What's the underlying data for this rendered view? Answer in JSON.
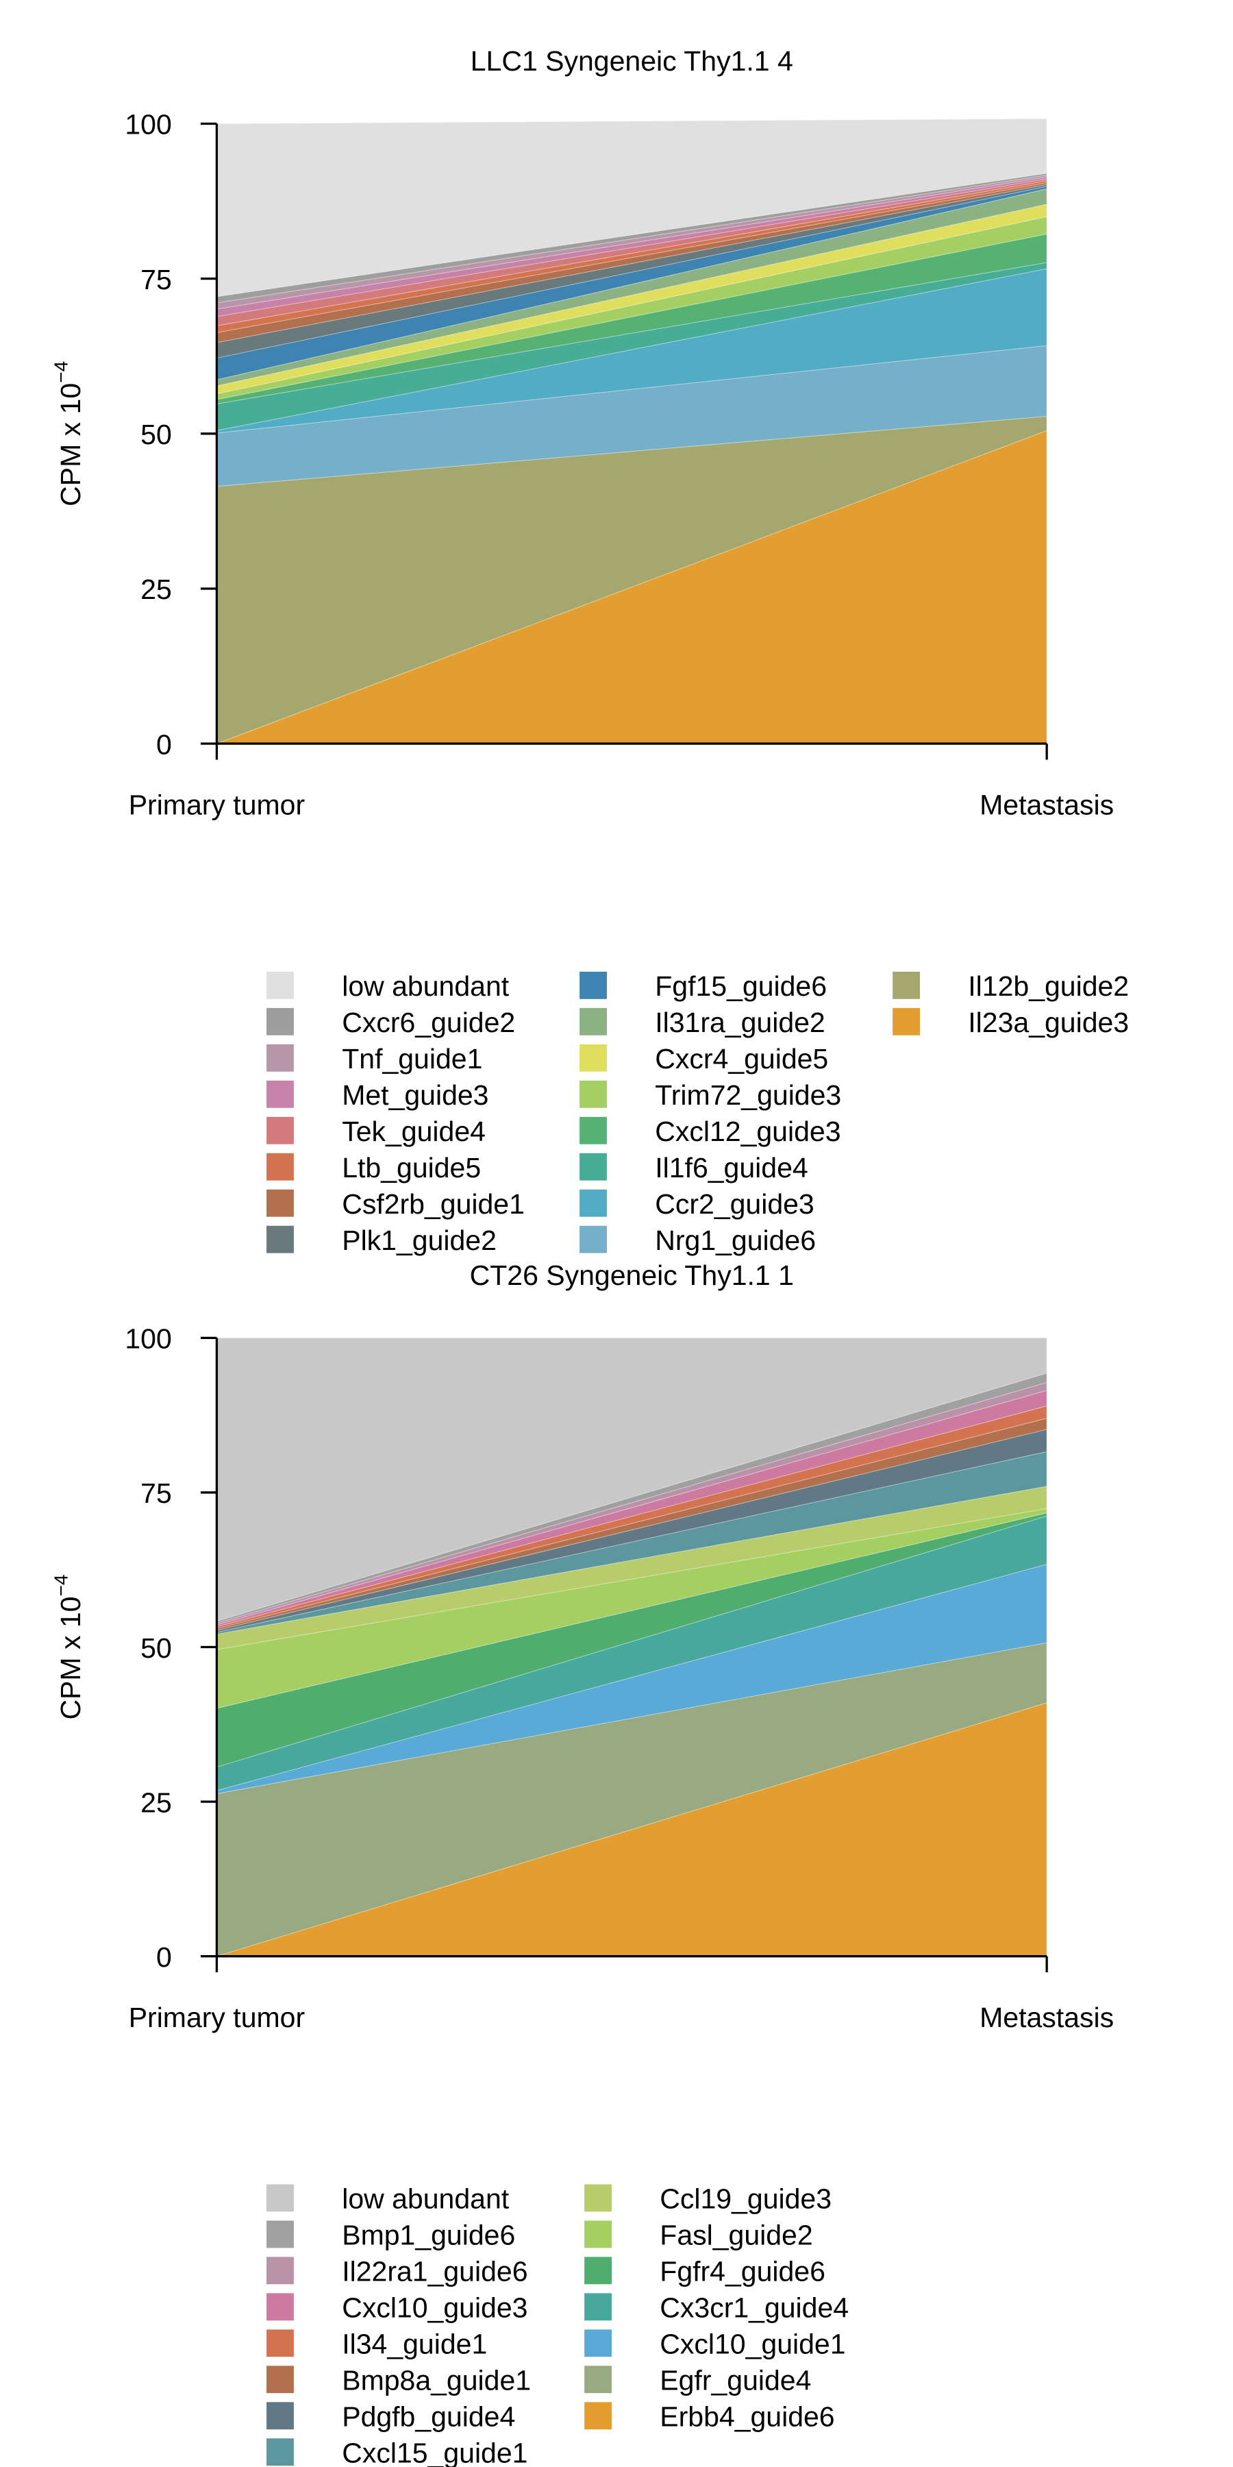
{
  "chart_data": [
    {
      "type": "area",
      "subtype": "stacked",
      "title": "LLC1 Syngeneic Thy1.1 4",
      "ylabel": "CPM x 10",
      "ylabel_exp": "−4",
      "xlabel": "",
      "categories": [
        "Primary tumor",
        "Metastasis"
      ],
      "ylim": [
        0,
        100
      ],
      "yticks": [
        "0",
        "25",
        "50",
        "75",
        "100"
      ],
      "grid": false,
      "legend": "bottom",
      "series": [
        {
          "name": "Il23a_guide3",
          "values": [
            0.0,
            50.5
          ],
          "color": "#e39e2f"
        },
        {
          "name": "Il12b_guide2",
          "values": [
            41.5,
            2.3
          ],
          "color": "#a4a86f"
        },
        {
          "name": "Nrg1_guide6",
          "values": [
            8.6,
            11.4
          ],
          "color": "#76afc9"
        },
        {
          "name": "Ccr2_guide3",
          "values": [
            0.4,
            12.4
          ],
          "color": "#53acc5"
        },
        {
          "name": "Il1f6_guide4",
          "values": [
            4.3,
            1.0
          ],
          "color": "#48ad97"
        },
        {
          "name": "Cxcl12_guide3",
          "values": [
            0.7,
            4.6
          ],
          "color": "#56b175"
        },
        {
          "name": "Trim72_guide3",
          "values": [
            0.9,
            2.8
          ],
          "color": "#a3cf63"
        },
        {
          "name": "Cxcr4_guide5",
          "values": [
            1.3,
            2.0
          ],
          "color": "#e0de5f"
        },
        {
          "name": "Il31ra_guide2",
          "values": [
            1.0,
            2.5
          ],
          "color": "#8cb284"
        },
        {
          "name": "Fgf15_guide6",
          "values": [
            3.5,
            0.4
          ],
          "color": "#3e84b2"
        },
        {
          "name": "Plk1_guide2",
          "values": [
            2.5,
            0.3
          ],
          "color": "#69797c"
        },
        {
          "name": "Csf2rb_guide1",
          "values": [
            1.6,
            0.3
          ],
          "color": "#b3704f"
        },
        {
          "name": "Ltb_guide5",
          "values": [
            1.1,
            0.3
          ],
          "color": "#d4734f"
        },
        {
          "name": "Tek_guide4",
          "values": [
            1.5,
            0.3
          ],
          "color": "#d37a7c"
        },
        {
          "name": "Met_guide3",
          "values": [
            1.2,
            0.3
          ],
          "color": "#c682a8"
        },
        {
          "name": "Tnf_guide1",
          "values": [
            1.0,
            0.3
          ],
          "color": "#b797a7"
        },
        {
          "name": "Cxcr6_guide2",
          "values": [
            1.0,
            0.3
          ],
          "color": "#9e9e9e"
        },
        {
          "name": "low abundant",
          "values": [
            27.9,
            8.8
          ],
          "color": "#e0e0e0"
        }
      ]
    },
    {
      "type": "area",
      "subtype": "stacked",
      "title": "CT26 Syngeneic Thy1.1 1",
      "ylabel": "CPM x 10",
      "ylabel_exp": "−4",
      "xlabel": "",
      "categories": [
        "Primary tumor",
        "Metastasis"
      ],
      "ylim": [
        0,
        100
      ],
      "yticks": [
        "0",
        "25",
        "50",
        "75",
        "100"
      ],
      "grid": false,
      "legend": "bottom",
      "series": [
        {
          "name": "Erbb4_guide6",
          "values": [
            0.0,
            41.0
          ],
          "color": "#e39e2f"
        },
        {
          "name": "Egfr_guide4",
          "values": [
            26.3,
            9.7
          ],
          "color": "#99aa80"
        },
        {
          "name": "Cxcl10_guide1",
          "values": [
            0.5,
            12.7
          ],
          "color": "#5aaad7"
        },
        {
          "name": "Cx3cr1_guide4",
          "values": [
            3.8,
            7.8
          ],
          "color": "#47a99c"
        },
        {
          "name": "Fgfr4_guide6",
          "values": [
            9.5,
            0.5
          ],
          "color": "#4fad70"
        },
        {
          "name": "Fasl_guide2",
          "values": [
            9.5,
            0.7
          ],
          "color": "#a6cf61"
        },
        {
          "name": "Ccl19_guide3",
          "values": [
            2.5,
            3.6
          ],
          "color": "#b8cc6b"
        },
        {
          "name": "Cxcl15_guide1",
          "values": [
            0.3,
            5.6
          ],
          "color": "#5c97a0"
        },
        {
          "name": "Pdgfb_guide4",
          "values": [
            0.3,
            3.6
          ],
          "color": "#607984"
        },
        {
          "name": "Bmp8a_guide1",
          "values": [
            0.3,
            1.8
          ],
          "color": "#b3704f"
        },
        {
          "name": "Il34_guide1",
          "values": [
            0.3,
            2.0
          ],
          "color": "#d4734f"
        },
        {
          "name": "Cxcl10_guide3",
          "values": [
            0.3,
            2.5
          ],
          "color": "#cc7aa1"
        },
        {
          "name": "Il22ra1_guide6",
          "values": [
            0.3,
            1.3
          ],
          "color": "#b992a8"
        },
        {
          "name": "Bmp1_guide6",
          "values": [
            0.3,
            1.5
          ],
          "color": "#a0a0a0"
        },
        {
          "name": "low abundant",
          "values": [
            45.8,
            5.7
          ],
          "color": "#c8c8c8"
        }
      ]
    }
  ]
}
